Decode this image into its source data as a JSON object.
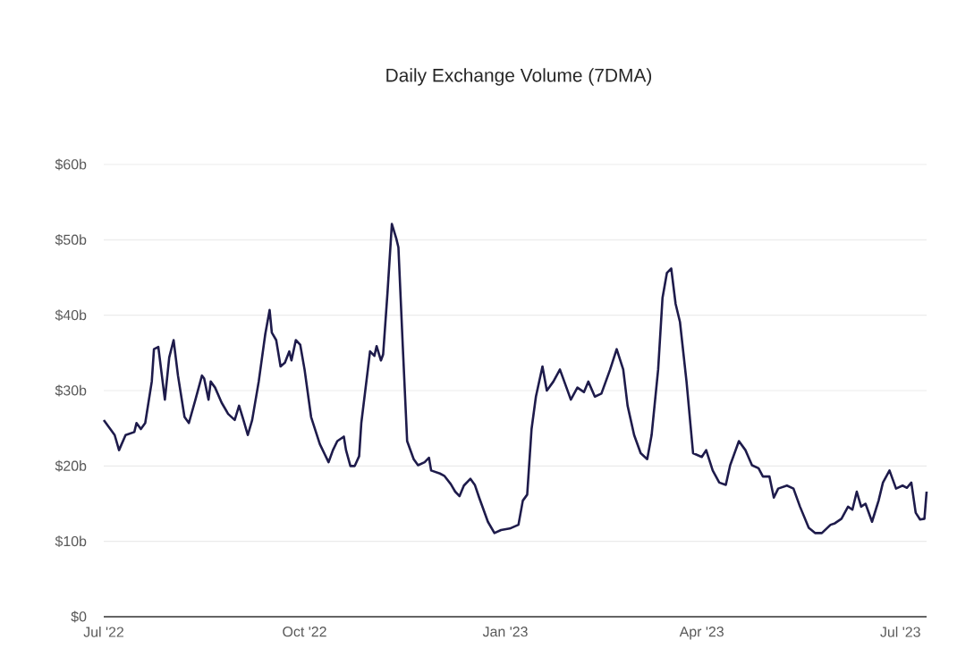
{
  "chart_data": {
    "type": "line",
    "title": "Daily Exchange Volume (7DMA)",
    "x": [
      "2022-07-01",
      "2022-07-04",
      "2022-07-06",
      "2022-07-08",
      "2022-07-11",
      "2022-07-15",
      "2022-07-16",
      "2022-07-18",
      "2022-07-20",
      "2022-07-23",
      "2022-07-24",
      "2022-07-26",
      "2022-07-29",
      "2022-07-31",
      "2022-08-02",
      "2022-08-04",
      "2022-08-07",
      "2022-08-09",
      "2022-08-12",
      "2022-08-15",
      "2022-08-16",
      "2022-08-18",
      "2022-08-19",
      "2022-08-21",
      "2022-08-24",
      "2022-08-27",
      "2022-08-30",
      "2022-09-01",
      "2022-09-03",
      "2022-09-05",
      "2022-09-07",
      "2022-09-10",
      "2022-09-13",
      "2022-09-15",
      "2022-09-16",
      "2022-09-18",
      "2022-09-20",
      "2022-09-22",
      "2022-09-24",
      "2022-09-25",
      "2022-09-27",
      "2022-09-29",
      "2022-10-01",
      "2022-10-04",
      "2022-10-08",
      "2022-10-12",
      "2022-10-14",
      "2022-10-16",
      "2022-10-19",
      "2022-10-20",
      "2022-10-22",
      "2022-10-24",
      "2022-10-26",
      "2022-10-27",
      "2022-10-30",
      "2022-10-31",
      "2022-11-02",
      "2022-11-03",
      "2022-11-05",
      "2022-11-06",
      "2022-11-08",
      "2022-11-10",
      "2022-11-12",
      "2022-11-13",
      "2022-11-15",
      "2022-11-17",
      "2022-11-20",
      "2022-11-22",
      "2022-11-25",
      "2022-11-27",
      "2022-11-28",
      "2022-12-02",
      "2022-12-04",
      "2022-12-07",
      "2022-12-09",
      "2022-12-11",
      "2022-12-13",
      "2022-12-16",
      "2022-12-18",
      "2022-12-20",
      "2022-12-21",
      "2022-12-24",
      "2022-12-27",
      "2022-12-30",
      "2023-01-03",
      "2023-01-07",
      "2023-01-09",
      "2023-01-11",
      "2023-01-13",
      "2023-01-15",
      "2023-01-18",
      "2023-01-20",
      "2023-01-23",
      "2023-01-26",
      "2023-01-29",
      "2023-01-31",
      "2023-02-03",
      "2023-02-06",
      "2023-02-08",
      "2023-02-11",
      "2023-02-14",
      "2023-02-18",
      "2023-02-21",
      "2023-02-24",
      "2023-02-26",
      "2023-03-01",
      "2023-03-04",
      "2023-03-07",
      "2023-03-09",
      "2023-03-12",
      "2023-03-14",
      "2023-03-16",
      "2023-03-18",
      "2023-03-20",
      "2023-03-22",
      "2023-03-25",
      "2023-03-28",
      "2023-04-01",
      "2023-04-03",
      "2023-04-06",
      "2023-04-09",
      "2023-04-12",
      "2023-04-14",
      "2023-04-18",
      "2023-04-21",
      "2023-04-24",
      "2023-04-27",
      "2023-04-29",
      "2023-05-02",
      "2023-05-04",
      "2023-05-06",
      "2023-05-10",
      "2023-05-13",
      "2023-05-16",
      "2023-05-20",
      "2023-05-23",
      "2023-05-26",
      "2023-05-30",
      "2023-06-01",
      "2023-06-04",
      "2023-06-07",
      "2023-06-09",
      "2023-06-11",
      "2023-06-13",
      "2023-06-15",
      "2023-06-18",
      "2023-06-21",
      "2023-06-23",
      "2023-06-26",
      "2023-06-29",
      "2023-07-02",
      "2023-07-04",
      "2023-07-06",
      "2023-07-08",
      "2023-07-10",
      "2023-07-12",
      "2023-07-13"
    ],
    "values": [
      26.1,
      24.9,
      24.1,
      22.1,
      24.1,
      24.5,
      25.7,
      24.9,
      25.7,
      31.2,
      35.5,
      35.8,
      28.8,
      34.4,
      36.7,
      32.0,
      26.5,
      25.7,
      28.8,
      32.0,
      31.6,
      28.8,
      31.2,
      30.4,
      28.4,
      26.9,
      26.1,
      28.0,
      26.1,
      24.1,
      26.1,
      31.2,
      37.5,
      40.7,
      37.7,
      36.7,
      33.2,
      33.7,
      35.2,
      34.0,
      36.7,
      36.1,
      32.8,
      26.5,
      22.9,
      20.5,
      22.1,
      23.3,
      23.9,
      22.1,
      20.0,
      20.0,
      21.3,
      25.7,
      32.8,
      35.2,
      34.6,
      35.9,
      34.0,
      34.8,
      43.0,
      52.1,
      50.2,
      49.0,
      35.9,
      23.3,
      20.9,
      20.1,
      20.5,
      21.1,
      19.4,
      19.0,
      18.7,
      17.6,
      16.6,
      16.0,
      17.4,
      18.3,
      17.5,
      15.8,
      15.0,
      12.6,
      11.1,
      11.5,
      11.7,
      12.2,
      15.4,
      16.2,
      24.9,
      29.2,
      33.2,
      30.0,
      31.2,
      32.8,
      30.4,
      28.8,
      30.4,
      29.8,
      31.2,
      29.2,
      29.6,
      32.8,
      35.5,
      32.8,
      28.0,
      24.1,
      21.7,
      20.9,
      24.1,
      32.8,
      42.3,
      45.6,
      46.2,
      41.5,
      39.1,
      31.2,
      21.7,
      21.2,
      22.1,
      19.4,
      17.8,
      17.5,
      20.1,
      23.3,
      22.1,
      20.1,
      19.7,
      18.6,
      18.6,
      15.8,
      17.0,
      17.4,
      17.0,
      14.6,
      11.8,
      11.1,
      11.1,
      12.2,
      12.4,
      13.0,
      14.6,
      14.2,
      16.6,
      14.6,
      15.0,
      12.6,
      15.4,
      17.8,
      19.4,
      17.0,
      17.4,
      17.1,
      17.8,
      13.8,
      12.9,
      13.0,
      16.6
    ],
    "color": "#1e1b4b",
    "xlim": [
      "2022-07-01",
      "2023-07-13"
    ],
    "xticks": [
      {
        "value": "2022-07-01",
        "label": "Jul '22"
      },
      {
        "value": "2022-10-01",
        "label": "Oct '22"
      },
      {
        "value": "2023-01-01",
        "label": "Jan '23"
      },
      {
        "value": "2023-04-01",
        "label": "Apr '23"
      },
      {
        "value": "2023-07-01",
        "label": "Jul '23"
      }
    ],
    "ylim": [
      0,
      60
    ],
    "yticks": [
      {
        "value": 0,
        "label": "$0"
      },
      {
        "value": 10,
        "label": "$10b"
      },
      {
        "value": 20,
        "label": "$20b"
      },
      {
        "value": 30,
        "label": "$30b"
      },
      {
        "value": 40,
        "label": "$40b"
      },
      {
        "value": 50,
        "label": "$50b"
      },
      {
        "value": 60,
        "label": "$60b"
      }
    ],
    "grid": "y"
  }
}
